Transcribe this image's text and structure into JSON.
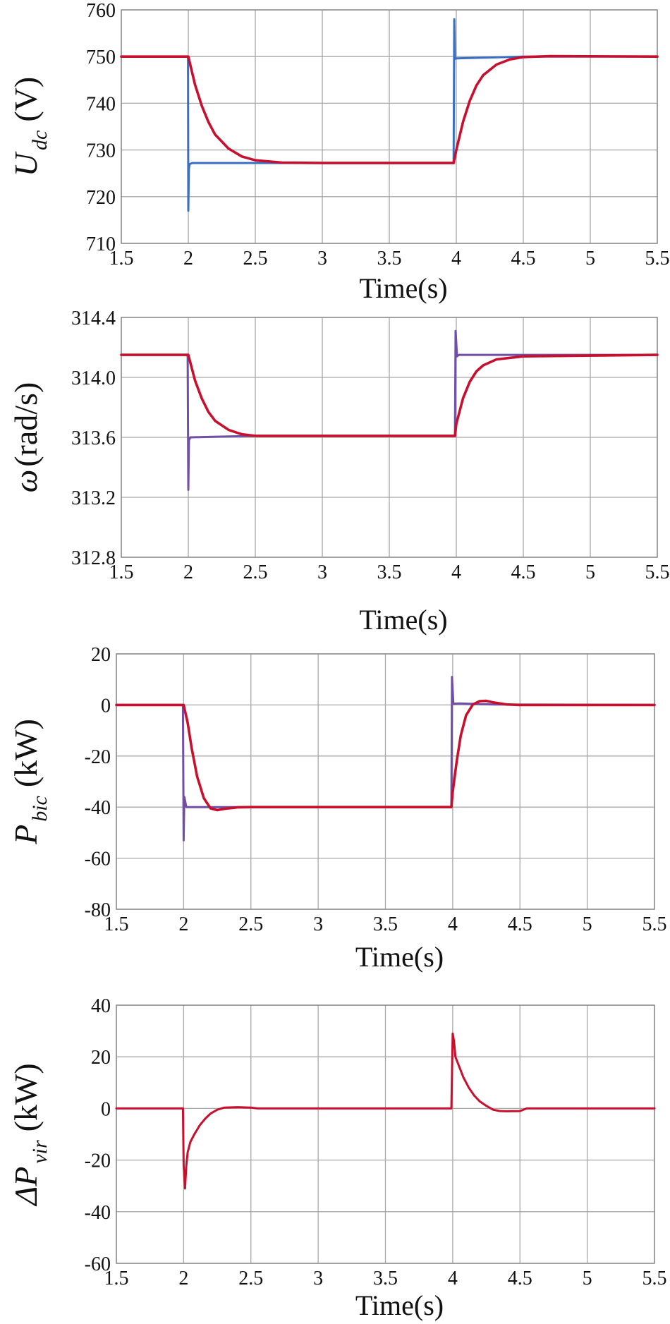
{
  "chart_data": [
    {
      "type": "line",
      "xlabel": "Time(s)",
      "ylabel": {
        "main": "U",
        "sub": "dc",
        "unit": "(V)"
      },
      "xlim": [
        1.5,
        5.5
      ],
      "ylim": [
        710,
        760
      ],
      "xticks": [
        "1.5",
        "2",
        "2.5",
        "3",
        "3.5",
        "4",
        "4.5",
        "5",
        "5.5"
      ],
      "yticks": [
        "710",
        "720",
        "730",
        "740",
        "750",
        "760"
      ],
      "grid": true,
      "series": [
        {
          "color": "#3b6fc4",
          "points": [
            [
              1.5,
              750
            ],
            [
              1.998,
              750
            ],
            [
              2.0,
              717
            ],
            [
              2.004,
              726
            ],
            [
              2.01,
              727
            ],
            [
              2.03,
              727.2
            ],
            [
              2.5,
              727.2
            ],
            [
              3.98,
              727.2
            ],
            [
              3.985,
              758
            ],
            [
              3.99,
              749.5
            ],
            [
              4.0,
              749.6
            ],
            [
              4.5,
              750
            ],
            [
              5.5,
              750
            ]
          ]
        },
        {
          "color": "#c8102e",
          "points": [
            [
              1.5,
              750
            ],
            [
              2.0,
              750
            ],
            [
              2.05,
              744
            ],
            [
              2.1,
              739.5
            ],
            [
              2.15,
              736
            ],
            [
              2.2,
              733.3
            ],
            [
              2.3,
              730.3
            ],
            [
              2.4,
              728.6
            ],
            [
              2.5,
              727.8
            ],
            [
              2.7,
              727.3
            ],
            [
              3.0,
              727.2
            ],
            [
              3.98,
              727.2
            ],
            [
              4.0,
              730
            ],
            [
              4.05,
              736
            ],
            [
              4.1,
              740.5
            ],
            [
              4.15,
              743.8
            ],
            [
              4.2,
              746
            ],
            [
              4.3,
              748.3
            ],
            [
              4.4,
              749.4
            ],
            [
              4.5,
              749.9
            ],
            [
              4.7,
              750.1
            ],
            [
              5.5,
              750
            ]
          ]
        }
      ]
    },
    {
      "type": "line",
      "xlabel": "Time(s)",
      "ylabel": {
        "main": "ω",
        "unit": "(rad/s)"
      },
      "xlim": [
        1.5,
        5.5
      ],
      "ylim": [
        312.8,
        314.4
      ],
      "xticks": [
        "1.5",
        "2",
        "2.5",
        "3",
        "3.5",
        "4",
        "4.5",
        "5",
        "5.5"
      ],
      "yticks": [
        "312.8",
        "313.2",
        "313.6",
        "314.0",
        "314.4"
      ],
      "grid": true,
      "series": [
        {
          "color": "#6f4fa8",
          "points": [
            [
              1.5,
              314.15
            ],
            [
              1.995,
              314.15
            ],
            [
              2.0,
              313.25
            ],
            [
              2.005,
              313.58
            ],
            [
              2.015,
              313.6
            ],
            [
              2.5,
              313.61
            ],
            [
              3.99,
              313.61
            ],
            [
              3.995,
              314.31
            ],
            [
              4.005,
              314.14
            ],
            [
              4.02,
              314.15
            ],
            [
              5.5,
              314.15
            ]
          ]
        },
        {
          "color": "#c8102e",
          "points": [
            [
              1.5,
              314.15
            ],
            [
              2.0,
              314.15
            ],
            [
              2.05,
              313.98
            ],
            [
              2.1,
              313.86
            ],
            [
              2.15,
              313.77
            ],
            [
              2.2,
              313.71
            ],
            [
              2.3,
              313.65
            ],
            [
              2.4,
              313.62
            ],
            [
              2.5,
              313.61
            ],
            [
              3.99,
              313.61
            ],
            [
              4.0,
              313.69
            ],
            [
              4.05,
              313.86
            ],
            [
              4.1,
              313.97
            ],
            [
              4.15,
              314.04
            ],
            [
              4.2,
              314.08
            ],
            [
              4.3,
              314.12
            ],
            [
              4.5,
              314.14
            ],
            [
              5.5,
              314.15
            ]
          ]
        }
      ]
    },
    {
      "type": "line",
      "xlabel": "Time(s)",
      "ylabel": {
        "main": "P",
        "sub": "bic",
        "unit": "(kW)"
      },
      "xlim": [
        1.5,
        5.5
      ],
      "ylim": [
        -80,
        20
      ],
      "xticks": [
        "1.5",
        "2",
        "2.5",
        "3",
        "3.5",
        "4",
        "4.5",
        "5",
        "5.5"
      ],
      "yticks": [
        "-80",
        "-60",
        "-40",
        "-20",
        "0",
        "20"
      ],
      "grid": true,
      "series": [
        {
          "color": "#6f4fa8",
          "points": [
            [
              1.5,
              0
            ],
            [
              1.995,
              0
            ],
            [
              2.0,
              -53
            ],
            [
              2.005,
              -36
            ],
            [
              2.02,
              -40
            ],
            [
              2.3,
              -40
            ],
            [
              3.99,
              -40
            ],
            [
              3.995,
              11
            ],
            [
              4.005,
              0.5
            ],
            [
              4.05,
              0.6
            ],
            [
              4.3,
              0.2
            ],
            [
              5.5,
              0
            ]
          ]
        },
        {
          "color": "#c8102e",
          "points": [
            [
              1.5,
              0
            ],
            [
              2.0,
              0
            ],
            [
              2.03,
              -7
            ],
            [
              2.06,
              -17
            ],
            [
              2.1,
              -28
            ],
            [
              2.15,
              -36.5
            ],
            [
              2.2,
              -40.5
            ],
            [
              2.25,
              -41.2
            ],
            [
              2.3,
              -40.7
            ],
            [
              2.4,
              -40.1
            ],
            [
              2.5,
              -40
            ],
            [
              3.99,
              -40
            ],
            [
              4.0,
              -34
            ],
            [
              4.03,
              -22
            ],
            [
              4.06,
              -12
            ],
            [
              4.1,
              -4
            ],
            [
              4.15,
              0.2
            ],
            [
              4.2,
              1.5
            ],
            [
              4.25,
              1.6
            ],
            [
              4.3,
              1
            ],
            [
              4.4,
              0.2
            ],
            [
              4.5,
              0
            ],
            [
              5.5,
              0
            ]
          ]
        }
      ]
    },
    {
      "type": "line",
      "xlabel": "Time(s)",
      "ylabel": {
        "main": "ΔP",
        "sub": "vir",
        "unit": "(kW)"
      },
      "xlim": [
        1.5,
        5.5
      ],
      "ylim": [
        -60,
        40
      ],
      "xticks": [
        "1.5",
        "2",
        "2.5",
        "3",
        "3.5",
        "4",
        "4.5",
        "5",
        "5.5"
      ],
      "yticks": [
        "-60",
        "-40",
        "-20",
        "0",
        "20",
        "40"
      ],
      "grid": true,
      "series": [
        {
          "color": "#c8102e",
          "points": [
            [
              1.5,
              0
            ],
            [
              1.995,
              0
            ],
            [
              2.0,
              -22
            ],
            [
              2.01,
              -31
            ],
            [
              2.02,
              -22
            ],
            [
              2.03,
              -17
            ],
            [
              2.05,
              -13
            ],
            [
              2.08,
              -10
            ],
            [
              2.12,
              -6.5
            ],
            [
              2.16,
              -4
            ],
            [
              2.2,
              -2
            ],
            [
              2.25,
              -0.5
            ],
            [
              2.3,
              0.3
            ],
            [
              2.4,
              0.5
            ],
            [
              2.5,
              0.3
            ],
            [
              2.55,
              0
            ],
            [
              3.99,
              0
            ],
            [
              4.0,
              29
            ],
            [
              4.01,
              26
            ],
            [
              4.02,
              20
            ],
            [
              4.05,
              16
            ],
            [
              4.08,
              12
            ],
            [
              4.12,
              8
            ],
            [
              4.16,
              5
            ],
            [
              4.2,
              2.8
            ],
            [
              4.25,
              1
            ],
            [
              4.3,
              -0.5
            ],
            [
              4.35,
              -1
            ],
            [
              4.4,
              -1.1
            ],
            [
              4.5,
              -1
            ],
            [
              4.55,
              0
            ],
            [
              5.5,
              0
            ]
          ]
        }
      ]
    }
  ]
}
